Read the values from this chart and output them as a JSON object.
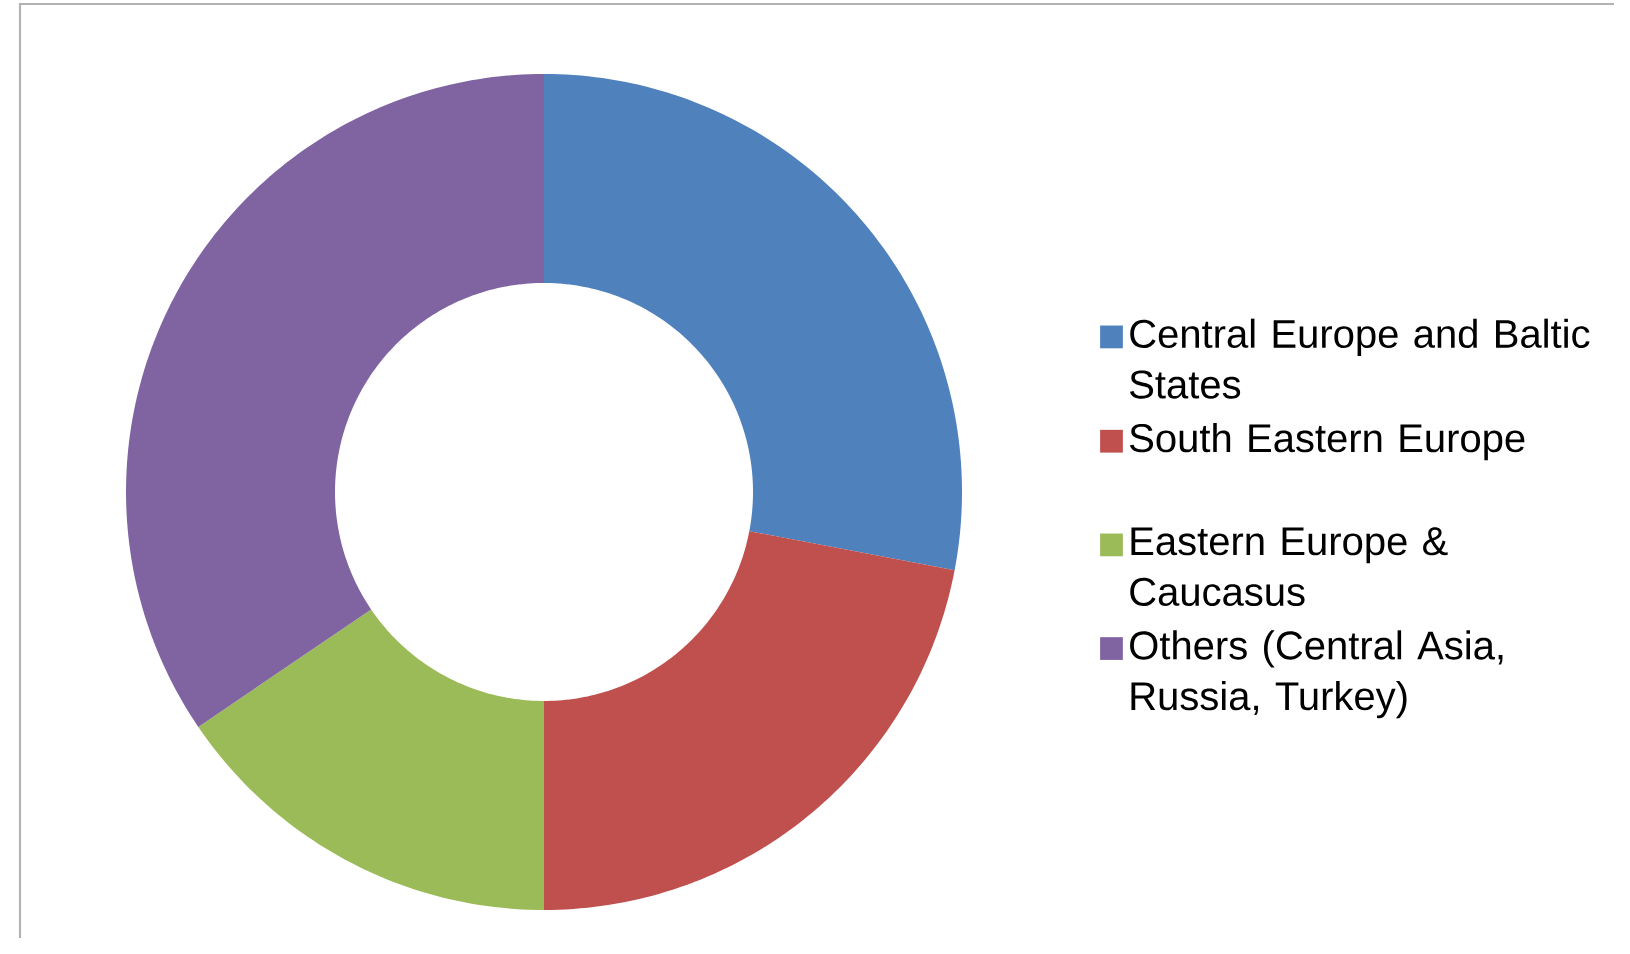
{
  "chart_data": {
    "type": "donut",
    "categories": [
      "Central Europe and Baltic States",
      "South Eastern Europe",
      "Eastern Europe & Caucasus",
      "Others (Central Asia, Russia, Turkey)"
    ],
    "values": [
      28,
      22,
      15.5,
      34.5
    ],
    "colors": [
      "#4f81bd",
      "#c0504d",
      "#9bbb59",
      "#8064a2"
    ],
    "legend": "right"
  }
}
